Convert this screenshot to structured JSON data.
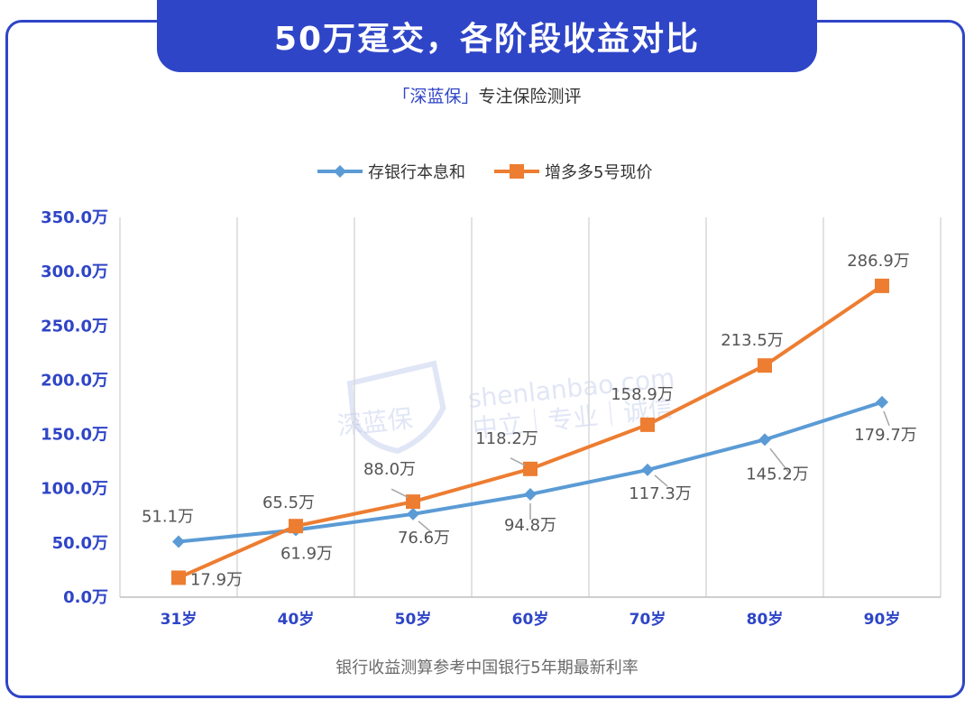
{
  "header": {
    "title": "50万趸交，各阶段收益对比",
    "brand": "「深蓝保」",
    "tagline": "专注保险测评"
  },
  "footnote": "银行收益测算参考中国银行5年期最新利率",
  "watermark": {
    "logo_text": "深蓝保",
    "site": "shenlanbao.com",
    "slogan": "中立｜专业｜诚信"
  },
  "chart_data": {
    "type": "line",
    "categories": [
      "31岁",
      "40岁",
      "50岁",
      "60岁",
      "70岁",
      "80岁",
      "90岁"
    ],
    "series": [
      {
        "name": "存银行本息和",
        "color": "#5b9bd5",
        "marker": "diamond",
        "values": [
          51.1,
          61.9,
          76.6,
          94.8,
          117.3,
          145.2,
          179.7
        ],
        "labels": [
          "51.1万",
          "61.9万",
          "76.6万",
          "94.8万",
          "117.3万",
          "145.2万",
          "179.7万"
        ]
      },
      {
        "name": "增多多5号现价",
        "color": "#ed7d31",
        "marker": "square",
        "values": [
          17.9,
          65.5,
          88.0,
          118.2,
          158.9,
          213.5,
          286.9
        ],
        "labels": [
          "17.9万",
          "65.5万",
          "88.0万",
          "118.2万",
          "158.9万",
          "213.5万",
          "286.9万"
        ]
      }
    ],
    "y_ticks": [
      "0.0万",
      "50.0万",
      "100.0万",
      "150.0万",
      "200.0万",
      "250.0万",
      "300.0万",
      "350.0万"
    ],
    "ylim": [
      0,
      350
    ],
    "xlabel": "",
    "ylabel": "",
    "legend": "top-center",
    "grid": "vertical"
  }
}
